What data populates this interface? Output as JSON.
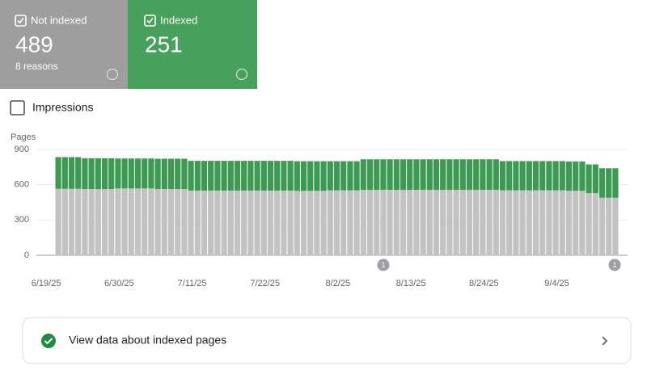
{
  "cards": [
    {
      "label": "Not indexed",
      "value": "489",
      "sub": "8 reasons"
    },
    {
      "label": "Indexed",
      "value": "251"
    }
  ],
  "impressions_label": "Impressions",
  "link_label": "View data about indexed pages",
  "chart_data": {
    "type": "bar",
    "stacked": true,
    "y_label": "Pages",
    "ylim": [
      0,
      900
    ],
    "yticks": [
      0,
      300,
      600,
      900
    ],
    "grid": true,
    "categories": [
      "6/19/25",
      null,
      null,
      null,
      null,
      null,
      null,
      null,
      null,
      null,
      null,
      "6/30/25",
      null,
      null,
      null,
      null,
      null,
      null,
      null,
      null,
      null,
      null,
      "7/11/25",
      null,
      null,
      null,
      null,
      null,
      null,
      null,
      null,
      null,
      null,
      "7/22/25",
      null,
      null,
      null,
      null,
      null,
      null,
      null,
      null,
      null,
      null,
      "8/2/25",
      null,
      null,
      null,
      null,
      null,
      null,
      null,
      null,
      null,
      null,
      "8/13/25",
      null,
      null,
      null,
      null,
      null,
      null,
      null,
      null,
      null,
      null,
      "8/24/25",
      null,
      null,
      null,
      null,
      null,
      null,
      null,
      null,
      null,
      null,
      "9/4/25",
      null,
      null,
      null,
      null,
      null,
      null,
      null
    ],
    "annotations": [
      "1",
      "1"
    ],
    "series": [
      {
        "name": "Not indexed",
        "color": "#c2c2c2",
        "values": [
          565,
          565,
          565,
          565,
          563,
          563,
          563,
          563,
          563,
          568,
          568,
          568,
          568,
          568,
          568,
          563,
          563,
          563,
          563,
          563,
          550,
          550,
          550,
          550,
          550,
          550,
          550,
          550,
          550,
          550,
          550,
          550,
          550,
          550,
          550,
          550,
          548,
          548,
          548,
          548,
          548,
          552,
          552,
          552,
          552,
          552,
          556,
          556,
          556,
          556,
          556,
          556,
          556,
          556,
          556,
          556,
          556,
          556,
          556,
          556,
          556,
          556,
          556,
          556,
          556,
          556,
          556,
          553,
          553,
          553,
          553,
          553,
          553,
          553,
          553,
          553,
          553,
          548,
          548,
          548,
          528,
          528,
          489,
          489,
          489
        ]
      },
      {
        "name": "Indexed",
        "color": "#3d9a52",
        "values": [
          270,
          270,
          270,
          270,
          262,
          262,
          262,
          262,
          262,
          255,
          255,
          255,
          255,
          255,
          255,
          258,
          258,
          258,
          258,
          258,
          253,
          253,
          253,
          253,
          253,
          253,
          253,
          253,
          253,
          253,
          253,
          253,
          253,
          253,
          253,
          253,
          252,
          252,
          252,
          252,
          252,
          248,
          248,
          248,
          248,
          248,
          260,
          260,
          260,
          260,
          260,
          260,
          260,
          260,
          260,
          260,
          260,
          260,
          260,
          260,
          260,
          260,
          260,
          260,
          260,
          260,
          260,
          248,
          248,
          248,
          248,
          248,
          248,
          248,
          248,
          248,
          248,
          250,
          250,
          250,
          245,
          245,
          251,
          251,
          251
        ]
      }
    ]
  }
}
